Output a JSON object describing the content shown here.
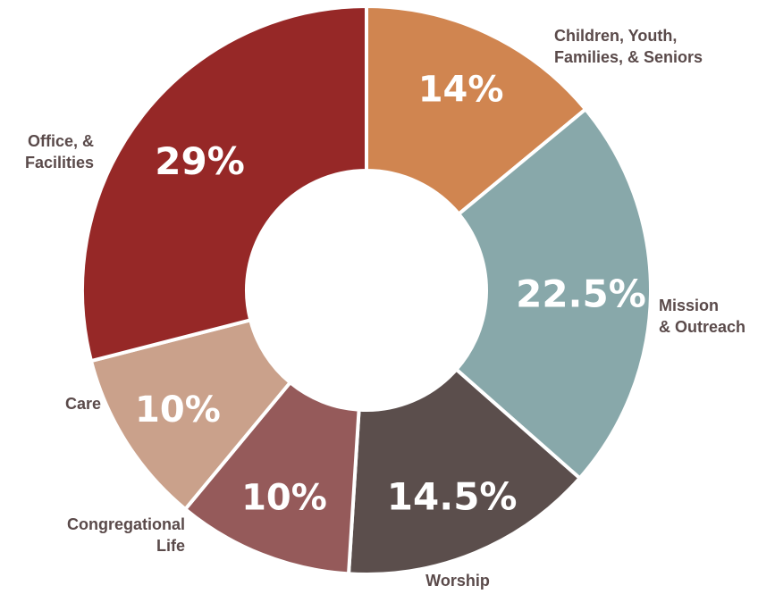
{
  "chart_data": {
    "type": "pie",
    "variant": "donut",
    "slices": [
      {
        "lines": [
          "Children, Youth,",
          "Families, & Seniors"
        ],
        "value": 14,
        "display": "14%",
        "color": "#d08550"
      },
      {
        "lines": [
          "Mission",
          "& Outreach"
        ],
        "value": 22.5,
        "display": "22.5%",
        "color": "#88a8aa"
      },
      {
        "lines": [
          "Worship"
        ],
        "value": 14.5,
        "display": "14.5%",
        "color": "#5b4e4c"
      },
      {
        "lines": [
          "Congregational",
          "Life"
        ],
        "value": 10,
        "display": "10%",
        "color": "#955a5a"
      },
      {
        "lines": [
          "Care"
        ],
        "value": 10,
        "display": "10%",
        "color": "#caa18b"
      },
      {
        "lines": [
          "Office, &",
          "Facilities"
        ],
        "value": 29,
        "display": "29%",
        "color": "#962827"
      }
    ],
    "start": "12 o'clock",
    "direction": "clockwise",
    "legend": "none"
  },
  "colors": {
    "label_text": "#5a4a4a",
    "slice_text": "#ffffff",
    "separator": "#ffffff"
  }
}
